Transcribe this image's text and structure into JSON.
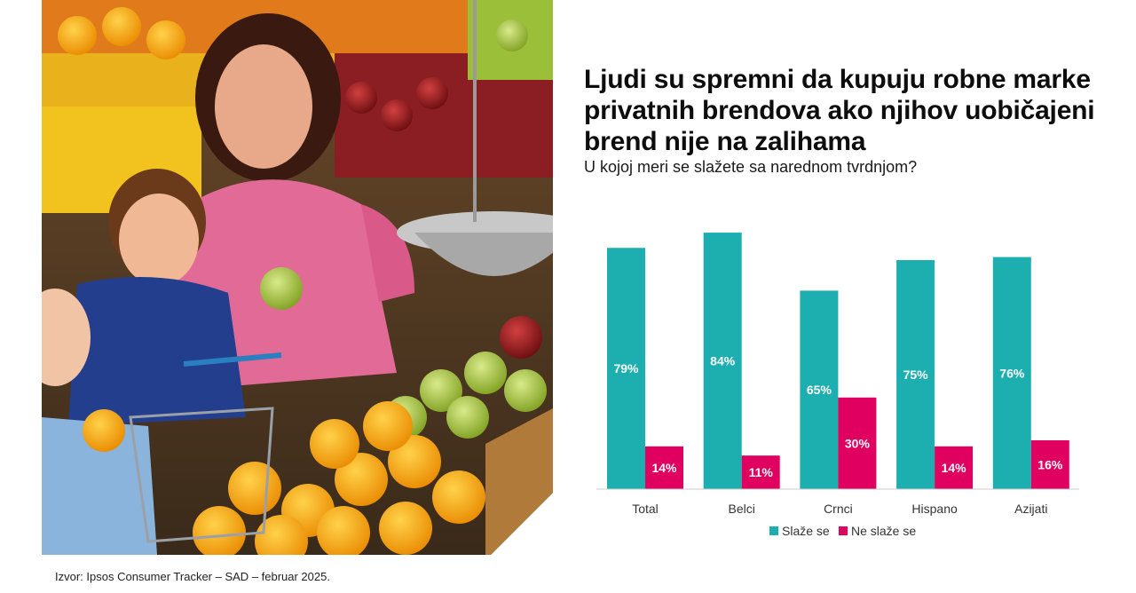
{
  "title": "Ljudi su spremni da kupuju robne marke privatnih brendova ako njihov uobičajeni brend nije na zalihama",
  "subtitle": "U kojoj meri se slažete sa narednom tvrdnjom?",
  "source": "Izvor: Ipsos Consumer Tracker – SAD – februar 2025.",
  "photo": {
    "description_icon": "shopper-photo"
  },
  "colors": {
    "agree": "#1dafb0",
    "disagree": "#e0005f",
    "axis": "#cccccc"
  },
  "chart_data": {
    "type": "bar",
    "title": "",
    "xlabel": "",
    "ylabel": "",
    "ylim": [
      0,
      100
    ],
    "grid": false,
    "legend": "bottom",
    "categories": [
      "Total",
      "Belci",
      "Crnci",
      "Hispano",
      "Azijati"
    ],
    "series": [
      {
        "name": "Slaže se",
        "values": [
          79,
          84,
          65,
          75,
          76
        ],
        "labels": [
          "79%",
          "84%",
          "65%",
          "75%",
          "76%"
        ]
      },
      {
        "name": "Ne slaže se",
        "values": [
          14,
          11,
          30,
          14,
          16
        ],
        "labels": [
          "14%",
          "11%",
          "30%",
          "14%",
          "16%"
        ]
      }
    ]
  }
}
